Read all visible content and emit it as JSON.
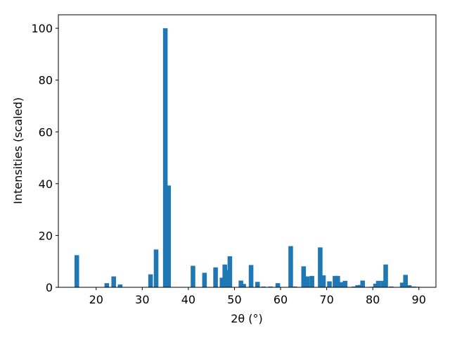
{
  "chart_data": {
    "type": "bar",
    "x_label": "2θ (°)",
    "y_label": "Intensities (scaled)",
    "x": [
      15.8,
      22.3,
      23.8,
      25.2,
      31.8,
      33.0,
      35.0,
      35.7,
      41.0,
      43.5,
      45.9,
      47.3,
      47.9,
      48.5,
      49.0,
      51.4,
      52.0,
      53.6,
      55.0,
      56.3,
      57.8,
      59.4,
      62.2,
      63.1,
      65.0,
      65.8,
      66.8,
      68.6,
      69.3,
      70.6,
      71.8,
      72.4,
      73.2,
      74.0,
      75.9,
      76.7,
      77.3,
      77.8,
      79.7,
      80.6,
      81.2,
      82.2,
      82.8,
      84.0,
      86.4,
      87.1,
      87.9,
      88.9,
      89.7
    ],
    "values": [
      12.4,
      1.6,
      4.2,
      1.1,
      5.0,
      14.6,
      100,
      39.3,
      8.3,
      5.6,
      7.7,
      3.7,
      8.8,
      6.7,
      12.0,
      2.6,
      1.3,
      8.6,
      2.1,
      0.3,
      0.3,
      1.6,
      15.9,
      0.3,
      8.1,
      4.2,
      4.4,
      15.4,
      4.6,
      2.3,
      4.4,
      4.4,
      2.0,
      2.5,
      0.3,
      0.8,
      0.9,
      2.6,
      0.2,
      1.4,
      2.5,
      2.5,
      8.8,
      0.3,
      1.8,
      4.8,
      0.8,
      0.3,
      0.2
    ],
    "color": "#1f77b4",
    "xlim": [
      11.8,
      93.7
    ],
    "ylim": [
      0,
      105.2
    ],
    "xticks": [
      20,
      30,
      40,
      50,
      60,
      70,
      80,
      90
    ],
    "yticks": [
      0,
      20,
      40,
      60,
      80,
      100
    ]
  }
}
